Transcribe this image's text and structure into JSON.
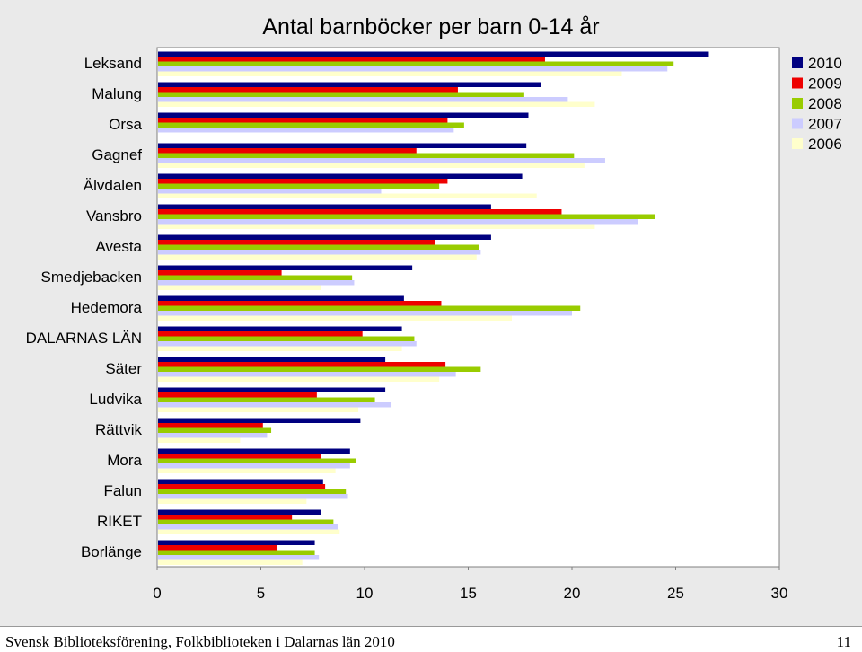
{
  "chart_data": {
    "type": "bar",
    "orientation": "horizontal",
    "title": "Antal barnböcker per barn 0-14 år",
    "categories": [
      "Leksand",
      "Malung",
      "Orsa",
      "Gagnef",
      "Älvdalen",
      "Vansbro",
      "Avesta",
      "Smedjebacken",
      "Hedemora",
      "DALARNAS LÄN",
      "Säter",
      "Ludvika",
      "Rättvik",
      "Mora",
      "Falun",
      "RIKET",
      "Borlänge"
    ],
    "series": [
      {
        "name": "2010",
        "color": "#000080",
        "values": [
          26.6,
          18.5,
          17.9,
          17.8,
          17.6,
          16.1,
          16.1,
          12.3,
          11.9,
          11.8,
          11.0,
          11.0,
          9.8,
          9.3,
          8.0,
          7.9,
          7.6
        ]
      },
      {
        "name": "2009",
        "color": "#ee0000",
        "values": [
          18.7,
          14.5,
          14.0,
          12.5,
          14.0,
          19.5,
          13.4,
          6.0,
          13.7,
          9.9,
          13.9,
          7.7,
          5.1,
          7.9,
          8.1,
          6.5,
          5.8
        ]
      },
      {
        "name": "2008",
        "color": "#99cc00",
        "values": [
          24.9,
          17.7,
          14.8,
          20.1,
          13.6,
          24.0,
          15.5,
          9.4,
          20.4,
          12.4,
          15.6,
          10.5,
          5.5,
          9.6,
          9.1,
          8.5,
          7.6
        ]
      },
      {
        "name": "2007",
        "color": "#ccccff",
        "values": [
          24.6,
          19.8,
          14.3,
          21.6,
          10.8,
          23.2,
          15.6,
          9.5,
          20.0,
          12.5,
          14.4,
          11.3,
          5.3,
          9.3,
          9.2,
          8.7,
          7.8
        ]
      },
      {
        "name": "2006",
        "color": "#ffffcc",
        "values": [
          22.4,
          21.1,
          0,
          20.6,
          18.3,
          21.1,
          15.4,
          7.9,
          17.1,
          11.8,
          13.6,
          9.7,
          4.0,
          8.6,
          7.2,
          8.8,
          7.0
        ]
      }
    ],
    "xlim": [
      0,
      30
    ],
    "xticks": [
      0,
      5,
      10,
      15,
      20,
      25,
      30
    ],
    "legend": "top-right",
    "grid": false
  },
  "footer": {
    "text": "Svensk Biblioteksförening, Folkbiblioteken i Dalarnas län 2010",
    "page_number": "11"
  }
}
